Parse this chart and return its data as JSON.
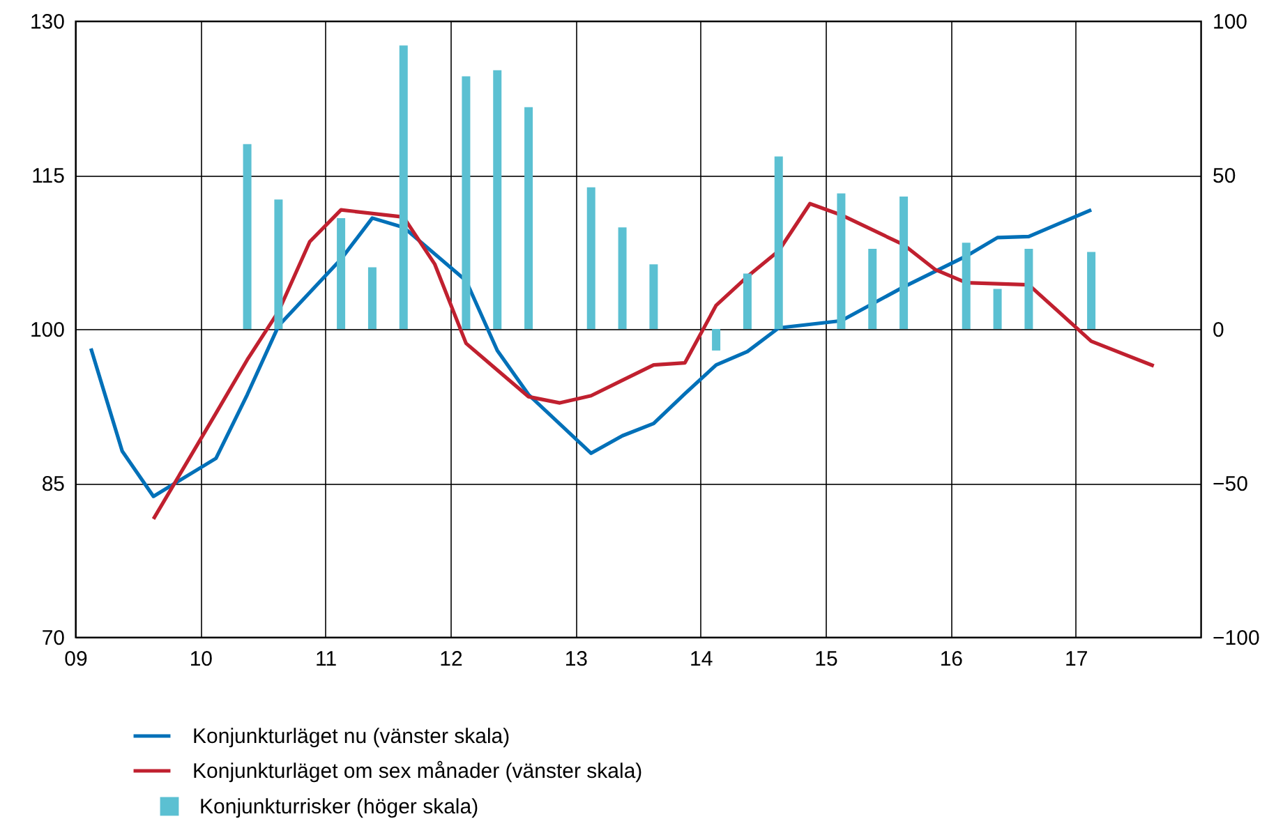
{
  "chart_data": {
    "type": "line",
    "xlim": [
      2009,
      2018
    ],
    "xticks": [
      {
        "value": 2009,
        "label": "09"
      },
      {
        "value": 2010,
        "label": "10"
      },
      {
        "value": 2011,
        "label": "11"
      },
      {
        "value": 2012,
        "label": "12"
      },
      {
        "value": 2013,
        "label": "13"
      },
      {
        "value": 2014,
        "label": "14"
      },
      {
        "value": 2015,
        "label": "15"
      },
      {
        "value": 2016,
        "label": "16"
      },
      {
        "value": 2017,
        "label": "17"
      }
    ],
    "ylim": [
      70,
      130
    ],
    "yticks": [
      70,
      85,
      100,
      115,
      130
    ],
    "y2lim": [
      -100,
      100
    ],
    "y2ticks": [
      -100,
      -50,
      0,
      50,
      100
    ],
    "grid": true,
    "legend": "bottom",
    "series": [
      {
        "name": "Konjunkturläget nu (vänster skala)",
        "color": "#0070b8",
        "x": [
          2009.125,
          2009.375,
          2009.625,
          2010.125,
          2010.375,
          2010.625,
          2011.125,
          2011.375,
          2011.625,
          2012.125,
          2012.375,
          2012.625,
          2013.125,
          2013.375,
          2013.625,
          2013.875,
          2014.125,
          2014.375,
          2014.625,
          2015.125,
          2015.625,
          2016.125,
          2016.375,
          2016.625,
          2017.125
        ],
        "values": [
          98.1,
          88.1,
          83.7,
          87.4,
          93.6,
          100.3,
          106.8,
          110.8,
          109.9,
          104.7,
          97.9,
          93.6,
          87.9,
          89.6,
          90.8,
          93.7,
          96.5,
          97.8,
          100.1,
          100.8,
          104.1,
          107.1,
          108.9,
          109.0,
          111.6
        ]
      },
      {
        "name": "Konjunkturläget om sex månader (vänster skala)",
        "color": "#c0202f",
        "x": [
          2009.625,
          2010.125,
          2010.375,
          2010.625,
          2010.875,
          2011.125,
          2011.625,
          2011.875,
          2012.125,
          2012.375,
          2012.625,
          2012.875,
          2013.125,
          2013.375,
          2013.625,
          2013.875,
          2014.125,
          2014.375,
          2014.625,
          2014.875,
          2015.125,
          2015.625,
          2015.875,
          2016.125,
          2016.625,
          2017.125,
          2017.625
        ],
        "values": [
          81.5,
          91.8,
          97.0,
          101.7,
          108.5,
          111.6,
          110.9,
          106.3,
          98.6,
          96.0,
          93.4,
          92.8,
          93.5,
          95.0,
          96.5,
          96.7,
          102.3,
          105.1,
          107.6,
          112.2,
          111.1,
          108.2,
          105.8,
          104.5,
          104.3,
          98.8,
          96.4
        ]
      },
      {
        "name": "Konjunkturrisker (höger skala)",
        "type": "bar",
        "axis": "y2",
        "color": "#5bc0d2",
        "x": [
          2010.375,
          2010.625,
          2011.125,
          2011.375,
          2011.625,
          2012.125,
          2012.375,
          2012.625,
          2013.125,
          2013.375,
          2013.625,
          2014.125,
          2014.375,
          2014.625,
          2015.125,
          2015.375,
          2015.625,
          2016.125,
          2016.375,
          2016.625,
          2017.125
        ],
        "values": [
          60,
          42,
          36,
          20,
          92,
          82,
          84,
          72,
          46,
          33,
          21,
          -7,
          18,
          56,
          44,
          26,
          43,
          28,
          13,
          26,
          25
        ]
      }
    ]
  }
}
